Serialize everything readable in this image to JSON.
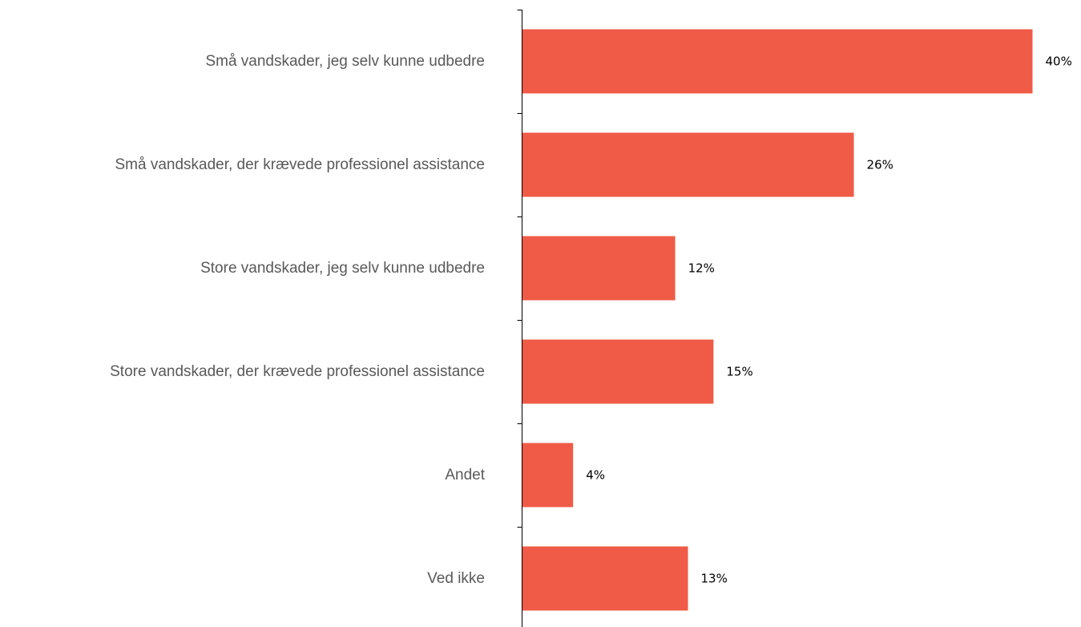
{
  "chart_data": {
    "type": "bar",
    "orientation": "horizontal",
    "categories": [
      "Små vandskader, jeg selv kunne udbedre",
      "Små vandskader, der krævede professionel assistance",
      "Store vandskader, jeg selv kunne udbedre",
      "Store vandskader, der krævede professionel assistance",
      "Andet",
      "Ved ikke"
    ],
    "values": [
      40,
      26,
      12,
      15,
      4,
      13
    ],
    "value_labels": [
      "40%",
      "26%",
      "12%",
      "15%",
      "4%",
      "13%"
    ],
    "unit": "%",
    "xlim": [
      0,
      40
    ],
    "title": "",
    "xlabel": "",
    "ylabel": "",
    "grid": false,
    "legend": "none",
    "bar_color": "#ef5b47"
  }
}
